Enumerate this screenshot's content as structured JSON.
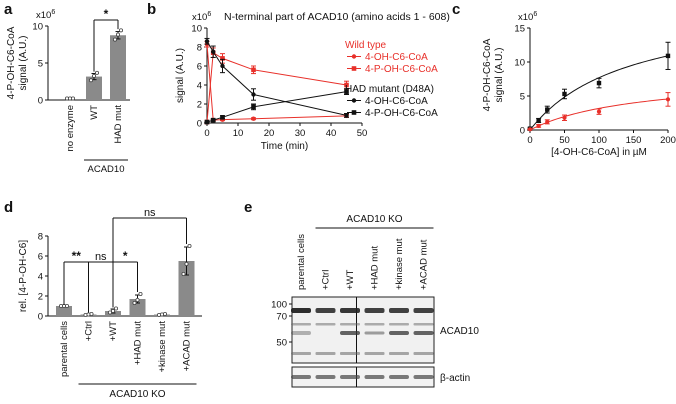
{
  "chart_data": [
    {
      "panel": "a",
      "type": "bar",
      "ylabel": "4-P-OH-C6-CoA signal (A.U.)",
      "ylabel_lines": [
        "4-P-OH-C6-CoA",
        "signal (A.U.)"
      ],
      "y_multiplier": "x10",
      "y_exponent": "6",
      "ylim": [
        0,
        12
      ],
      "yticks": [
        "0",
        "5",
        "10"
      ],
      "categories": [
        "no enzyme",
        "WT",
        "HAD mut"
      ],
      "values": [
        0.0,
        3.8,
        10.5
      ],
      "errors": [
        0,
        0.5,
        0.6
      ],
      "points": [
        [
          0,
          0,
          0
        ],
        [
          3.2,
          3.9,
          4.4
        ],
        [
          9.8,
          10.6,
          11.3
        ]
      ],
      "group_label": "ACAD10",
      "significance": "*",
      "bar_color": "#8a8a8a"
    },
    {
      "panel": "b",
      "type": "line",
      "title": "N-terminal part of ACAD10 (amino acids 1 - 608)",
      "xlabel": "Time (min)",
      "ylabel": "signal (A.U.)",
      "y_multiplier": "x10",
      "y_exponent": "6",
      "xlim": [
        0,
        50
      ],
      "xticks": [
        "0",
        "10",
        "20",
        "30",
        "40",
        "50"
      ],
      "ylim": [
        0,
        10
      ],
      "yticks": [
        "0",
        "2",
        "4",
        "6",
        "8",
        "10"
      ],
      "legend_groups": [
        "Wild type",
        "HAD mutant  (D48A)"
      ],
      "legend_items": [
        "4-OH-C6-CoA",
        "4-P-OH-C6-CoA",
        "4-OH-C6-CoA",
        "4-P-OH-C6-CoA"
      ],
      "x": [
        0,
        2,
        5,
        15,
        45
      ],
      "series": [
        {
          "name": "4-OH-C6-CoA",
          "group": "Wild type",
          "color": "#e8302a",
          "marker": "circle",
          "values": [
            8.3,
            0.3,
            0.35,
            0.45,
            0.75
          ],
          "errors": [
            0.3,
            0.1,
            0.1,
            0.1,
            0.15
          ]
        },
        {
          "name": "4-P-OH-C6-CoA",
          "group": "Wild type",
          "color": "#e8302a",
          "marker": "square",
          "values": [
            0.1,
            7.4,
            6.8,
            5.6,
            4.0
          ],
          "errors": [
            0.05,
            0.5,
            0.5,
            0.4,
            0.4
          ]
        },
        {
          "name": "4-OH-C6-CoA",
          "group": "HAD mutant  (D48A)",
          "color": "#111111",
          "marker": "circle",
          "values": [
            8.6,
            7.5,
            6.0,
            3.0,
            0.8
          ],
          "errors": [
            0.3,
            0.6,
            0.7,
            0.6,
            0.2
          ]
        },
        {
          "name": "4-P-OH-C6-CoA",
          "group": "HAD mutant  (D48A)",
          "color": "#111111",
          "marker": "square",
          "values": [
            0.1,
            0.3,
            0.6,
            1.7,
            3.3
          ],
          "errors": [
            0.05,
            0.1,
            0.15,
            0.3,
            0.3
          ]
        }
      ]
    },
    {
      "panel": "c",
      "type": "scatter",
      "xlabel": "[4-OH-C6-CoA] in µM",
      "ylabel": "4-P-OH-C6-CoA signal (A.U.)",
      "ylabel_lines": [
        "4-P-OH-C6-CoA",
        "signal (A.U.)"
      ],
      "y_multiplier": "x10",
      "y_exponent": "6",
      "xlim": [
        0,
        200
      ],
      "xticks": [
        "0",
        "50",
        "100",
        "150",
        "200"
      ],
      "ylim": [
        0,
        15
      ],
      "yticks": [
        "0",
        "5",
        "10",
        "15"
      ],
      "x": [
        0,
        12.5,
        25,
        50,
        100,
        200
      ],
      "series": [
        {
          "color": "#111111",
          "values": [
            0.2,
            1.4,
            3.0,
            5.3,
            6.9,
            10.9
          ],
          "errors": [
            0.1,
            0.3,
            0.5,
            0.7,
            0.7,
            2.0
          ],
          "fit": {
            "vmax": 18.7,
            "km": 143
          }
        },
        {
          "color": "#e8302a",
          "values": [
            0.1,
            0.6,
            1.2,
            1.8,
            2.7,
            4.5
          ],
          "errors": [
            0.05,
            0.2,
            0.3,
            0.4,
            0.4,
            1.0
          ],
          "fit": {
            "vmax": 8.1,
            "km": 155
          }
        }
      ]
    },
    {
      "panel": "d",
      "type": "bar",
      "ylabel": "rel. [4-P-OH-C6]",
      "ylim": [
        0,
        8
      ],
      "yticks": [
        "0",
        "2",
        "4",
        "6",
        "8"
      ],
      "categories": [
        "parental cells",
        "+Ctrl",
        "+WT",
        "+HAD mut",
        "+kinase mut",
        "+ACAD mut"
      ],
      "values": [
        1.0,
        0.15,
        0.5,
        1.7,
        0.15,
        5.5
      ],
      "errors": [
        0.05,
        0.05,
        0.2,
        0.4,
        0.05,
        1.4
      ],
      "points": [
        [
          1.0,
          1.0,
          1.0
        ],
        [
          0.1,
          0.15,
          0.2
        ],
        [
          0.35,
          0.5,
          0.75
        ],
        [
          1.3,
          1.6,
          2.2
        ],
        [
          0.1,
          0.15,
          0.2
        ],
        [
          4.2,
          5.2,
          7.0
        ]
      ],
      "group_label": "ACAD10 KO",
      "significance": [
        {
          "from": 0,
          "to": 1,
          "label": "**"
        },
        {
          "from": 1,
          "to": 2,
          "label": "ns"
        },
        {
          "from": 2,
          "to": 3,
          "label": "*"
        },
        {
          "from": 2,
          "to": 5,
          "label": "ns"
        }
      ],
      "bar_color": "#8a8a8a"
    }
  ],
  "blot": {
    "panel": "e",
    "group_label": "ACAD10 KO",
    "lanes": [
      "parental cells",
      "+Ctrl",
      "+WT",
      "+HAD mut",
      "+kinase mut",
      "+ACAD mut"
    ],
    "markers": [
      "100",
      "70",
      "50"
    ],
    "band_labels": [
      "ACAD10",
      "β-actin"
    ]
  },
  "panel_labels": [
    "a",
    "b",
    "c",
    "d",
    "e"
  ]
}
